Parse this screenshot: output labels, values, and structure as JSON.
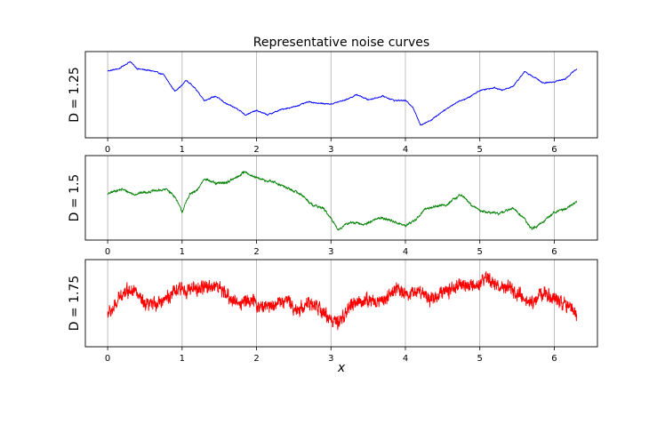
{
  "chart_data": {
    "type": "line",
    "title": "Representative noise curves",
    "xlabel": "x",
    "xlim": [
      -0.3,
      6.58
    ],
    "xticks": [
      0,
      1,
      2,
      3,
      4,
      5,
      6
    ],
    "grid": "vertical",
    "panels": [
      {
        "ylabel": "D = 1.25",
        "color": "#0000ff",
        "ylim": [
          0.0,
          1.0
        ],
        "x": [
          0.0,
          0.15,
          0.3,
          0.4,
          0.6,
          0.75,
          0.9,
          1.0,
          1.05,
          1.15,
          1.3,
          1.45,
          1.6,
          1.75,
          1.85,
          2.0,
          2.15,
          2.35,
          2.5,
          2.7,
          2.85,
          3.0,
          3.2,
          3.35,
          3.5,
          3.7,
          3.85,
          4.0,
          4.1,
          4.2,
          4.35,
          4.5,
          4.7,
          4.85,
          5.0,
          5.2,
          5.3,
          5.45,
          5.6,
          5.75,
          5.85,
          6.0,
          6.15,
          6.3
        ],
        "values": [
          0.83,
          0.86,
          0.96,
          0.86,
          0.83,
          0.78,
          0.55,
          0.63,
          0.7,
          0.62,
          0.42,
          0.48,
          0.37,
          0.3,
          0.22,
          0.28,
          0.22,
          0.3,
          0.33,
          0.4,
          0.38,
          0.37,
          0.43,
          0.5,
          0.43,
          0.48,
          0.42,
          0.42,
          0.33,
          0.08,
          0.15,
          0.27,
          0.4,
          0.46,
          0.56,
          0.6,
          0.56,
          0.62,
          0.82,
          0.73,
          0.66,
          0.68,
          0.72,
          0.86
        ]
      },
      {
        "ylabel": "D = 1.5",
        "color": "#008000",
        "ylim": [
          0.0,
          1.0
        ],
        "x": [
          0.0,
          0.1,
          0.2,
          0.35,
          0.5,
          0.65,
          0.8,
          0.9,
          1.0,
          1.1,
          1.2,
          1.3,
          1.45,
          1.6,
          1.75,
          1.85,
          1.95,
          2.1,
          2.25,
          2.45,
          2.6,
          2.75,
          2.9,
          3.0,
          3.1,
          3.25,
          3.45,
          3.65,
          3.8,
          4.0,
          4.15,
          4.25,
          4.4,
          4.55,
          4.75,
          4.9,
          5.05,
          5.25,
          5.45,
          5.6,
          5.7,
          5.85,
          6.0,
          6.15,
          6.3
        ],
        "values": [
          0.55,
          0.6,
          0.62,
          0.55,
          0.58,
          0.6,
          0.62,
          0.52,
          0.3,
          0.55,
          0.6,
          0.78,
          0.7,
          0.72,
          0.8,
          0.88,
          0.8,
          0.75,
          0.72,
          0.62,
          0.55,
          0.4,
          0.35,
          0.2,
          0.05,
          0.15,
          0.12,
          0.22,
          0.18,
          0.1,
          0.2,
          0.33,
          0.38,
          0.4,
          0.55,
          0.38,
          0.3,
          0.28,
          0.35,
          0.2,
          0.05,
          0.15,
          0.3,
          0.34,
          0.45
        ]
      },
      {
        "ylabel": "D = 1.75",
        "color": "#ff0000",
        "ylim": [
          0.0,
          1.0
        ],
        "x": [
          0.0,
          0.1,
          0.2,
          0.35,
          0.5,
          0.65,
          0.8,
          0.9,
          1.0,
          1.15,
          1.3,
          1.45,
          1.6,
          1.75,
          1.9,
          2.05,
          2.2,
          2.4,
          2.55,
          2.7,
          2.85,
          3.0,
          3.1,
          3.25,
          3.45,
          3.6,
          3.75,
          3.9,
          4.05,
          4.2,
          4.35,
          4.5,
          4.65,
          4.8,
          4.95,
          5.1,
          5.25,
          5.4,
          5.55,
          5.7,
          5.85,
          6.0,
          6.15,
          6.3
        ],
        "values": [
          0.35,
          0.45,
          0.65,
          0.7,
          0.45,
          0.5,
          0.58,
          0.65,
          0.7,
          0.68,
          0.72,
          0.75,
          0.6,
          0.5,
          0.55,
          0.45,
          0.48,
          0.55,
          0.4,
          0.5,
          0.42,
          0.28,
          0.2,
          0.45,
          0.55,
          0.52,
          0.58,
          0.7,
          0.62,
          0.68,
          0.55,
          0.65,
          0.72,
          0.75,
          0.7,
          0.85,
          0.72,
          0.7,
          0.58,
          0.5,
          0.65,
          0.55,
          0.52,
          0.35
        ]
      }
    ]
  }
}
